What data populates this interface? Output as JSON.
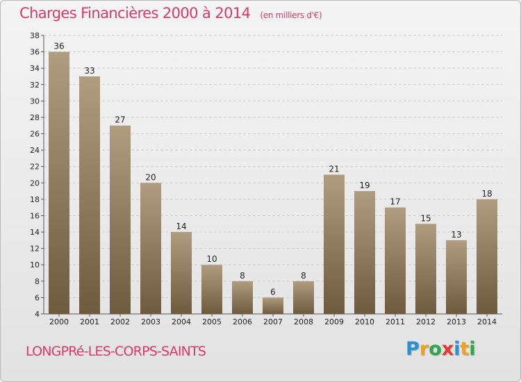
{
  "header": {
    "title": "Charges Financières 2000 à 2014",
    "unit_note": "(en milliers d'€)"
  },
  "location": "LONGPRé-LES-CORPS-SAINTS",
  "logo": {
    "letters": [
      "P",
      "r",
      "o",
      "x",
      "i",
      "t",
      "i"
    ],
    "colors": [
      "#2a8fd4",
      "#f0a21c",
      "#2aa84a",
      "#e6392e",
      "#2a8fd4",
      "#f0a21c",
      "#2aa84a"
    ]
  },
  "colors": {
    "bar_top": "#b09c7e",
    "bar_bottom": "#6e5a3c",
    "title": "#d7396a"
  },
  "chart_data": {
    "type": "bar",
    "title": "Charges Financières 2000 à 2014",
    "subtitle": "(en milliers d'€)",
    "categories": [
      "2000",
      "2001",
      "2002",
      "2003",
      "2004",
      "2005",
      "2006",
      "2007",
      "2008",
      "2009",
      "2010",
      "2011",
      "2012",
      "2013",
      "2014"
    ],
    "values": [
      36,
      33,
      27,
      20,
      14,
      10,
      8,
      6,
      8,
      21,
      19,
      17,
      15,
      13,
      18
    ],
    "ylim": [
      4,
      38
    ],
    "yticks": [
      4,
      6,
      8,
      10,
      12,
      14,
      16,
      18,
      20,
      22,
      24,
      26,
      28,
      30,
      32,
      34,
      36,
      38
    ],
    "grid": true,
    "legend": "none"
  }
}
